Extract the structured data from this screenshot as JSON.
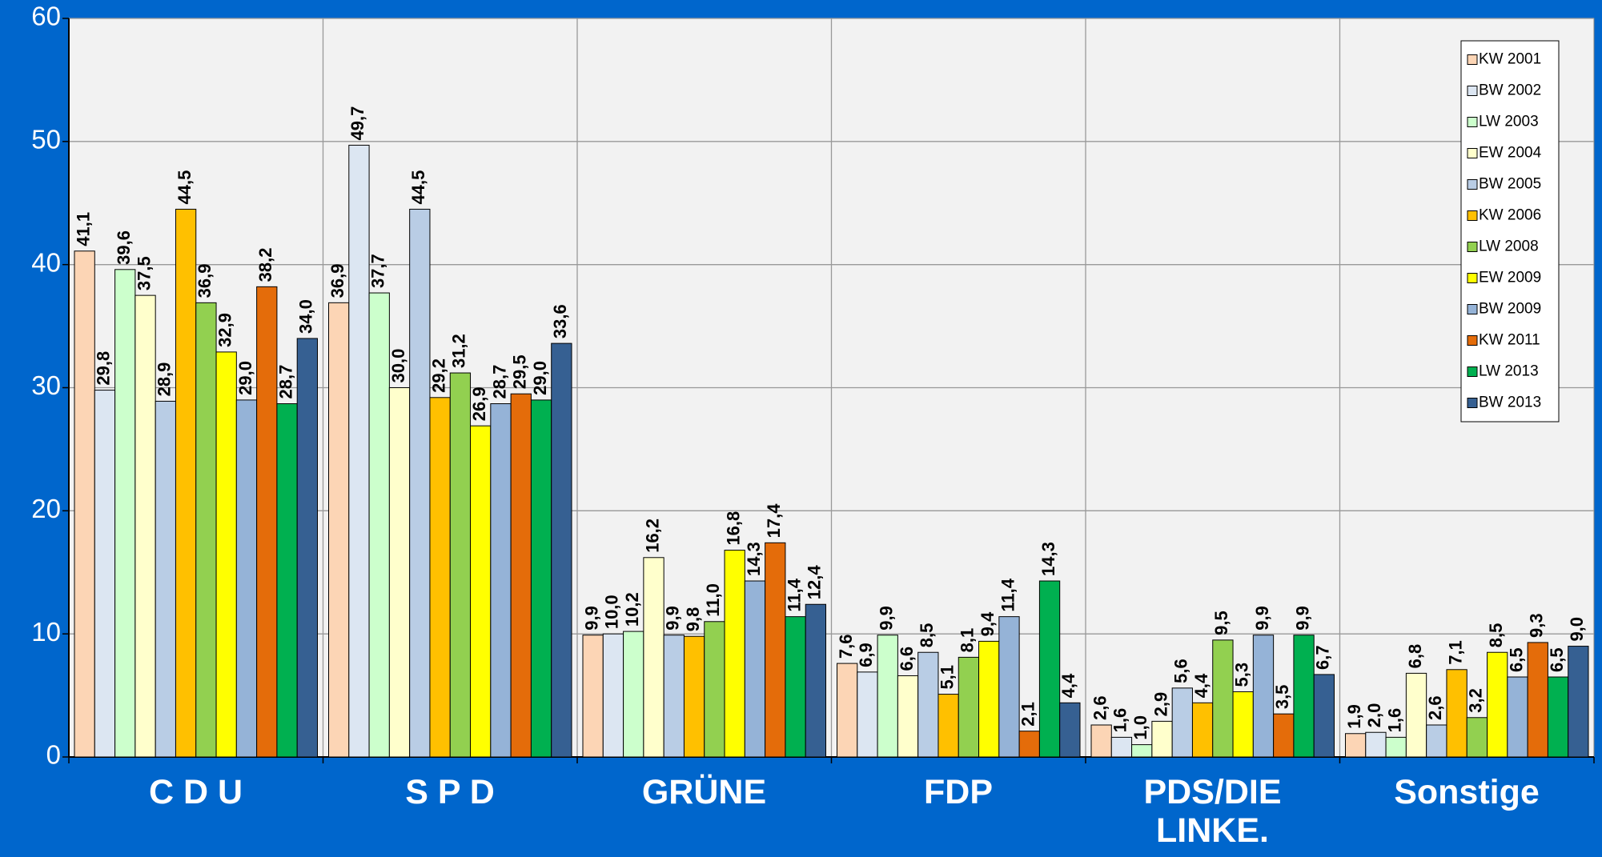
{
  "chart_data": {
    "type": "bar",
    "categories": [
      "C D U",
      "S P D",
      "GRÜNE",
      "FDP",
      "PDS/DIE LINKE.",
      "Sonstige"
    ],
    "ylim": [
      0,
      60
    ],
    "yticks": [
      0,
      10,
      20,
      30,
      40,
      50,
      60
    ],
    "grid": true,
    "legend": "upper right",
    "series": [
      {
        "name": "KW 2001",
        "color": "#fcd5b5",
        "values": [
          41.1,
          36.9,
          9.9,
          7.6,
          2.6,
          1.9
        ],
        "value_labels": [
          "41,1",
          "36,9",
          "9,9",
          "7,6",
          "2,6",
          "1,9"
        ]
      },
      {
        "name": "BW 2002",
        "color": "#dce6f2",
        "values": [
          29.8,
          49.7,
          10.0,
          6.9,
          1.6,
          2.0
        ],
        "value_labels": [
          "29,8",
          "49,7",
          "10,0",
          "6,9",
          "1,6",
          "2,0"
        ]
      },
      {
        "name": "LW 2003",
        "color": "#ccffcc",
        "values": [
          39.6,
          37.7,
          10.2,
          9.9,
          1.0,
          1.6
        ],
        "value_labels": [
          "39,6",
          "37,7",
          "10,2",
          "9,9",
          "1,0",
          "1,6"
        ]
      },
      {
        "name": "EW 2004",
        "color": "#ffffcc",
        "values": [
          37.5,
          30.0,
          16.2,
          6.6,
          2.9,
          6.8
        ],
        "value_labels": [
          "37,5",
          "30,0",
          "16,2",
          "6,6",
          "2,9",
          "6,8"
        ]
      },
      {
        "name": "BW 2005",
        "color": "#b9cde5",
        "values": [
          28.9,
          44.5,
          9.9,
          8.5,
          5.6,
          2.6
        ],
        "value_labels": [
          "28,9",
          "44,5",
          "9,9",
          "8,5",
          "5,6",
          "2,6"
        ]
      },
      {
        "name": "KW 2006",
        "color": "#ffc000",
        "values": [
          44.5,
          29.2,
          9.8,
          5.1,
          4.4,
          7.1
        ],
        "value_labels": [
          "44,5",
          "29,2",
          "9,8",
          "5,1",
          "4,4",
          "7,1"
        ]
      },
      {
        "name": "LW 2008",
        "color": "#92d050",
        "values": [
          36.9,
          31.2,
          11.0,
          8.1,
          9.5,
          3.2
        ],
        "value_labels": [
          "36,9",
          "31,2",
          "11,0",
          "8,1",
          "9,5",
          "3,2"
        ]
      },
      {
        "name": "EW 2009",
        "color": "#ffff00",
        "values": [
          32.9,
          26.9,
          16.8,
          9.4,
          5.3,
          8.5
        ],
        "value_labels": [
          "32,9",
          "26,9",
          "16,8",
          "9,4",
          "5,3",
          "8,5"
        ]
      },
      {
        "name": "BW 2009",
        "color": "#95b3d7",
        "values": [
          29.0,
          28.7,
          14.3,
          11.4,
          9.9,
          6.5
        ],
        "value_labels": [
          "29,0",
          "28,7",
          "14,3",
          "11,4",
          "9,9",
          "6,5"
        ]
      },
      {
        "name": "KW 2011",
        "color": "#e46c0a",
        "values": [
          38.2,
          29.5,
          17.4,
          2.1,
          3.5,
          9.3
        ],
        "value_labels": [
          "38,2",
          "29,5",
          "17,4",
          "2,1",
          "3,5",
          "9,3"
        ]
      },
      {
        "name": "LW 2013",
        "color": "#00b050",
        "values": [
          28.7,
          29.0,
          11.4,
          14.3,
          9.9,
          6.5
        ],
        "value_labels": [
          "28,7",
          "29,0",
          "11,4",
          "14,3",
          "9,9",
          "6,5"
        ]
      },
      {
        "name": "BW 2013",
        "color": "#366092",
        "values": [
          34.0,
          33.6,
          12.4,
          4.4,
          6.7,
          9.0
        ],
        "value_labels": [
          "34,0",
          "33,6",
          "12,4",
          "4,4",
          "6,7",
          "9,0"
        ]
      }
    ]
  }
}
